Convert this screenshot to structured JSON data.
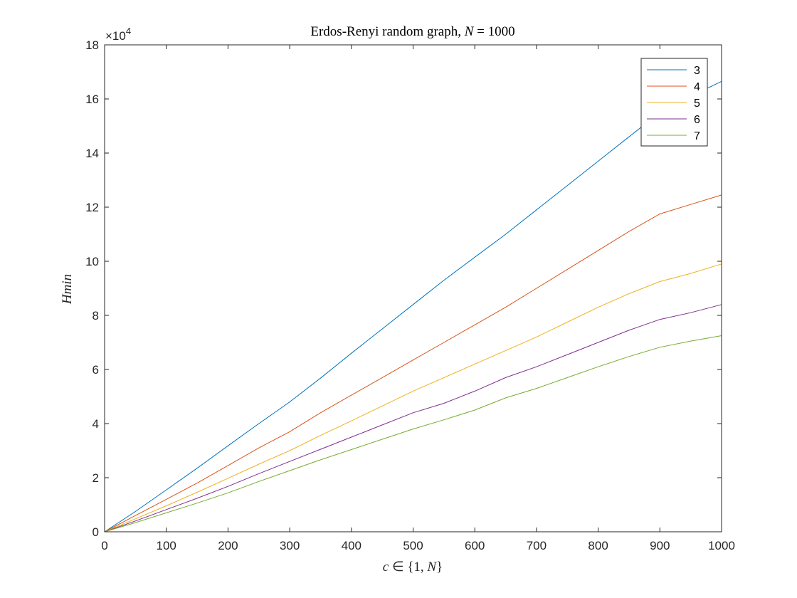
{
  "chart_data": {
    "type": "line",
    "title": "Erdos-Renyi random graph, N = 1000",
    "title_parts": {
      "prefix": "Erdos-Renyi random graph,",
      "var": "N",
      "eq": "= 1000"
    },
    "xlabel": "c ∈ {1, N}",
    "xlabel_parts": {
      "var": "c",
      "rest": "∈ {1,",
      "var2": "N",
      "close": "}"
    },
    "ylabel": "Hmin",
    "ylabel_parts": {
      "main": "H",
      "rest": "min"
    },
    "xlim": [
      0,
      1000
    ],
    "ylim": [
      0,
      180000
    ],
    "x_ticks": [
      0,
      100,
      200,
      300,
      400,
      500,
      600,
      700,
      800,
      900,
      1000
    ],
    "y_ticks": [
      0,
      20000,
      40000,
      60000,
      80000,
      100000,
      120000,
      140000,
      160000,
      180000
    ],
    "y_tick_labels": [
      "0",
      "2",
      "4",
      "6",
      "8",
      "10",
      "12",
      "14",
      "16",
      "18"
    ],
    "y_exponent": {
      "base": "×10",
      "power": "4"
    },
    "grid": false,
    "legend_position": "top-right",
    "x": [
      0,
      50,
      100,
      150,
      200,
      250,
      300,
      350,
      400,
      450,
      500,
      550,
      600,
      650,
      700,
      750,
      800,
      850,
      900,
      950,
      1000
    ],
    "series": [
      {
        "name": "3",
        "color": "#0072BD",
        "values": [
          0,
          7500,
          15500,
          23500,
          31800,
          40000,
          48000,
          56800,
          66000,
          75000,
          84000,
          93000,
          101500,
          110000,
          119000,
          128000,
          137000,
          146000,
          155000,
          161000,
          166500
        ]
      },
      {
        "name": "4",
        "color": "#D95319",
        "values": [
          0,
          6000,
          12000,
          18000,
          24500,
          31000,
          37000,
          44000,
          50500,
          57000,
          63500,
          70000,
          76500,
          83000,
          90000,
          97000,
          104000,
          111000,
          117500,
          121000,
          124500
        ]
      },
      {
        "name": "5",
        "color": "#EDB120",
        "values": [
          0,
          4800,
          9600,
          14600,
          19800,
          25000,
          30000,
          35600,
          41000,
          46500,
          52000,
          57000,
          62000,
          67000,
          72000,
          77500,
          83000,
          88000,
          92500,
          95500,
          99000
        ]
      },
      {
        "name": "6",
        "color": "#7E2F8E",
        "values": [
          0,
          4000,
          8200,
          12400,
          16800,
          21500,
          26000,
          30500,
          35000,
          39500,
          44000,
          47500,
          52000,
          57000,
          61000,
          65500,
          70000,
          74500,
          78500,
          81000,
          84000
        ]
      },
      {
        "name": "7",
        "color": "#77AC30",
        "values": [
          0,
          3400,
          7000,
          10600,
          14400,
          18600,
          22600,
          26600,
          30400,
          34200,
          38000,
          41400,
          45000,
          49500,
          53000,
          57000,
          61000,
          64800,
          68200,
          70500,
          72500
        ]
      }
    ]
  }
}
